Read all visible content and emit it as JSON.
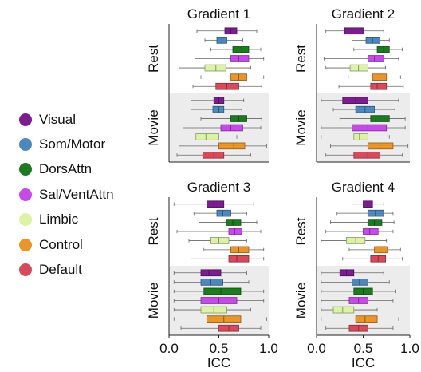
{
  "legend": {
    "items": [
      {
        "label": "Visual",
        "color": "#7b1d8f"
      },
      {
        "label": "Som/Motor",
        "color": "#4c88bd"
      },
      {
        "label": "DorsAttn",
        "color": "#1c7a1f"
      },
      {
        "label": "Sal/VentAttn",
        "color": "#c54ae8"
      },
      {
        "label": "Limbic",
        "color": "#dcf2a5"
      },
      {
        "label": "Control",
        "color": "#e8952c"
      },
      {
        "label": "Default",
        "color": "#d64a5b"
      }
    ]
  },
  "chart_data": [
    {
      "type": "box",
      "title": "Gradient 1",
      "xlabel": "ICC",
      "xlim": [
        0.0,
        1.0
      ],
      "xticks": [
        "0.0",
        "0.5",
        "1.0"
      ],
      "groups": [
        {
          "label": "Rest",
          "shaded": false,
          "boxes": [
            {
              "network": "Visual",
              "whislo": 0.28,
              "q1": 0.56,
              "med": 0.62,
              "q3": 0.68,
              "whishi": 0.88
            },
            {
              "network": "Som/Motor",
              "whislo": 0.36,
              "q1": 0.48,
              "med": 0.53,
              "q3": 0.58,
              "whishi": 0.74
            },
            {
              "network": "DorsAttn",
              "whislo": 0.42,
              "q1": 0.64,
              "med": 0.73,
              "q3": 0.8,
              "whishi": 0.92
            },
            {
              "network": "Sal/VentAttn",
              "whislo": 0.26,
              "q1": 0.62,
              "med": 0.7,
              "q3": 0.8,
              "whishi": 0.95
            },
            {
              "network": "Limbic",
              "whislo": 0.1,
              "q1": 0.36,
              "med": 0.47,
              "q3": 0.57,
              "whishi": 0.82
            },
            {
              "network": "Control",
              "whislo": 0.32,
              "q1": 0.62,
              "med": 0.7,
              "q3": 0.78,
              "whishi": 0.95
            },
            {
              "network": "Default",
              "whislo": 0.24,
              "q1": 0.47,
              "med": 0.58,
              "q3": 0.7,
              "whishi": 0.93
            }
          ]
        },
        {
          "label": "Movie",
          "shaded": true,
          "boxes": [
            {
              "network": "Visual",
              "whislo": 0.22,
              "q1": 0.45,
              "med": 0.5,
              "q3": 0.55,
              "whishi": 0.75
            },
            {
              "network": "Som/Motor",
              "whislo": 0.22,
              "q1": 0.44,
              "med": 0.5,
              "q3": 0.55,
              "whishi": 0.73
            },
            {
              "network": "DorsAttn",
              "whislo": 0.32,
              "q1": 0.62,
              "med": 0.7,
              "q3": 0.78,
              "whishi": 0.93
            },
            {
              "network": "Sal/VentAttn",
              "whislo": 0.14,
              "q1": 0.52,
              "med": 0.62,
              "q3": 0.74,
              "whishi": 0.92
            },
            {
              "network": "Limbic",
              "whislo": 0.1,
              "q1": 0.27,
              "med": 0.37,
              "q3": 0.5,
              "whishi": 0.68
            },
            {
              "network": "Control",
              "whislo": 0.1,
              "q1": 0.5,
              "med": 0.65,
              "q3": 0.76,
              "whishi": 0.98
            },
            {
              "network": "Default",
              "whislo": 0.08,
              "q1": 0.34,
              "med": 0.45,
              "q3": 0.55,
              "whishi": 0.82
            }
          ]
        }
      ]
    },
    {
      "type": "box",
      "title": "Gradient 2",
      "xlabel": "ICC",
      "xlim": [
        0.0,
        1.0
      ],
      "xticks": [
        "0.0",
        "0.5",
        "1.0"
      ],
      "groups": [
        {
          "label": "Rest",
          "shaded": false,
          "boxes": [
            {
              "network": "Visual",
              "whislo": 0.1,
              "q1": 0.3,
              "med": 0.38,
              "q3": 0.5,
              "whishi": 0.72
            },
            {
              "network": "Som/Motor",
              "whislo": 0.38,
              "q1": 0.53,
              "med": 0.6,
              "q3": 0.68,
              "whishi": 0.78
            },
            {
              "network": "DorsAttn",
              "whislo": 0.4,
              "q1": 0.65,
              "med": 0.72,
              "q3": 0.78,
              "whishi": 0.92
            },
            {
              "network": "Sal/VentAttn",
              "whislo": 0.08,
              "q1": 0.55,
              "med": 0.62,
              "q3": 0.72,
              "whishi": 0.88
            },
            {
              "network": "Limbic",
              "whislo": 0.1,
              "q1": 0.36,
              "med": 0.45,
              "q3": 0.55,
              "whishi": 0.74
            },
            {
              "network": "Control",
              "whislo": 0.34,
              "q1": 0.6,
              "med": 0.68,
              "q3": 0.75,
              "whishi": 0.9
            },
            {
              "network": "Default",
              "whislo": 0.24,
              "q1": 0.58,
              "med": 0.65,
              "q3": 0.75,
              "whishi": 0.93
            }
          ]
        },
        {
          "label": "Movie",
          "shaded": true,
          "boxes": [
            {
              "network": "Visual",
              "whislo": 0.05,
              "q1": 0.28,
              "med": 0.42,
              "q3": 0.55,
              "whishi": 0.88
            },
            {
              "network": "Som/Motor",
              "whislo": 0.18,
              "q1": 0.42,
              "med": 0.52,
              "q3": 0.62,
              "whishi": 0.84
            },
            {
              "network": "DorsAttn",
              "whislo": 0.25,
              "q1": 0.58,
              "med": 0.68,
              "q3": 0.78,
              "whishi": 0.95
            },
            {
              "network": "Sal/VentAttn",
              "whislo": 0.05,
              "q1": 0.38,
              "med": 0.55,
              "q3": 0.75,
              "whishi": 0.95
            },
            {
              "network": "Limbic",
              "whislo": 0.05,
              "q1": 0.4,
              "med": 0.46,
              "q3": 0.55,
              "whishi": 0.78
            },
            {
              "network": "Control",
              "whislo": 0.15,
              "q1": 0.55,
              "med": 0.68,
              "q3": 0.82,
              "whishi": 0.98
            },
            {
              "network": "Default",
              "whislo": 0.1,
              "q1": 0.4,
              "med": 0.55,
              "q3": 0.68,
              "whishi": 0.92
            }
          ]
        }
      ]
    },
    {
      "type": "box",
      "title": "Gradient 3",
      "xlabel": "ICC",
      "xlim": [
        0.0,
        1.0
      ],
      "xticks": [
        "0.0",
        "0.5",
        "1.0"
      ],
      "groups": [
        {
          "label": "Rest",
          "shaded": false,
          "boxes": [
            {
              "network": "Visual",
              "whislo": 0.05,
              "q1": 0.38,
              "med": 0.45,
              "q3": 0.55,
              "whishi": 0.85
            },
            {
              "network": "Som/Motor",
              "whislo": 0.25,
              "q1": 0.48,
              "med": 0.54,
              "q3": 0.62,
              "whishi": 0.78
            },
            {
              "network": "DorsAttn",
              "whislo": 0.3,
              "q1": 0.58,
              "med": 0.64,
              "q3": 0.72,
              "whishi": 0.88
            },
            {
              "network": "Sal/VentAttn",
              "whislo": 0.08,
              "q1": 0.6,
              "med": 0.66,
              "q3": 0.73,
              "whishi": 0.92
            },
            {
              "network": "Limbic",
              "whislo": 0.2,
              "q1": 0.42,
              "med": 0.5,
              "q3": 0.6,
              "whishi": 0.78
            },
            {
              "network": "Control",
              "whislo": 0.35,
              "q1": 0.62,
              "med": 0.7,
              "q3": 0.8,
              "whishi": 0.95
            },
            {
              "network": "Default",
              "whislo": 0.22,
              "q1": 0.6,
              "med": 0.68,
              "q3": 0.8,
              "whishi": 0.95
            }
          ]
        },
        {
          "label": "Movie",
          "shaded": true,
          "boxes": [
            {
              "network": "Visual",
              "whislo": 0.05,
              "q1": 0.32,
              "med": 0.4,
              "q3": 0.52,
              "whishi": 0.78
            },
            {
              "network": "Som/Motor",
              "whislo": 0.05,
              "q1": 0.32,
              "med": 0.42,
              "q3": 0.54,
              "whishi": 0.8
            },
            {
              "network": "DorsAttn",
              "whislo": 0.05,
              "q1": 0.35,
              "med": 0.52,
              "q3": 0.72,
              "whishi": 0.95
            },
            {
              "network": "Sal/VentAttn",
              "whislo": 0.05,
              "q1": 0.32,
              "med": 0.5,
              "q3": 0.68,
              "whishi": 0.95
            },
            {
              "network": "Limbic",
              "whislo": 0.05,
              "q1": 0.32,
              "med": 0.45,
              "q3": 0.58,
              "whishi": 0.82
            },
            {
              "network": "Control",
              "whislo": 0.05,
              "q1": 0.38,
              "med": 0.55,
              "q3": 0.72,
              "whishi": 0.98
            },
            {
              "network": "Default",
              "whislo": 0.12,
              "q1": 0.5,
              "med": 0.6,
              "q3": 0.7,
              "whishi": 0.92
            }
          ]
        }
      ]
    },
    {
      "type": "box",
      "title": "Gradient 4",
      "xlabel": "ICC",
      "xlim": [
        0.0,
        1.0
      ],
      "xticks": [
        "0.0",
        "0.5",
        "1.0"
      ],
      "groups": [
        {
          "label": "Rest",
          "shaded": false,
          "boxes": [
            {
              "network": "Visual",
              "whislo": 0.38,
              "q1": 0.5,
              "med": 0.55,
              "q3": 0.6,
              "whishi": 0.72
            },
            {
              "network": "Som/Motor",
              "whislo": 0.22,
              "q1": 0.55,
              "med": 0.63,
              "q3": 0.72,
              "whishi": 0.82
            },
            {
              "network": "DorsAttn",
              "whislo": 0.15,
              "q1": 0.55,
              "med": 0.62,
              "q3": 0.7,
              "whishi": 0.83
            },
            {
              "network": "Sal/VentAttn",
              "whislo": 0.1,
              "q1": 0.5,
              "med": 0.57,
              "q3": 0.66,
              "whishi": 0.82
            },
            {
              "network": "Limbic",
              "whislo": 0.05,
              "q1": 0.32,
              "med": 0.42,
              "q3": 0.52,
              "whishi": 0.75
            },
            {
              "network": "Control",
              "whislo": 0.35,
              "q1": 0.62,
              "med": 0.68,
              "q3": 0.76,
              "whishi": 0.9
            },
            {
              "network": "Default",
              "whislo": 0.28,
              "q1": 0.58,
              "med": 0.66,
              "q3": 0.74,
              "whishi": 0.92
            }
          ]
        },
        {
          "label": "Movie",
          "shaded": true,
          "boxes": [
            {
              "network": "Visual",
              "whislo": 0.05,
              "q1": 0.25,
              "med": 0.32,
              "q3": 0.4,
              "whishi": 0.72
            },
            {
              "network": "Som/Motor",
              "whislo": 0.05,
              "q1": 0.38,
              "med": 0.46,
              "q3": 0.55,
              "whishi": 0.78
            },
            {
              "network": "DorsAttn",
              "whislo": 0.05,
              "q1": 0.4,
              "med": 0.5,
              "q3": 0.6,
              "whishi": 0.85
            },
            {
              "network": "Sal/VentAttn",
              "whislo": 0.05,
              "q1": 0.35,
              "med": 0.45,
              "q3": 0.55,
              "whishi": 0.82
            },
            {
              "network": "Limbic",
              "whislo": 0.05,
              "q1": 0.18,
              "med": 0.28,
              "q3": 0.4,
              "whishi": 0.65
            },
            {
              "network": "Control",
              "whislo": 0.05,
              "q1": 0.42,
              "med": 0.52,
              "q3": 0.65,
              "whishi": 0.88
            },
            {
              "network": "Default",
              "whislo": 0.1,
              "q1": 0.35,
              "med": 0.45,
              "q3": 0.55,
              "whishi": 0.82
            }
          ]
        }
      ]
    }
  ]
}
